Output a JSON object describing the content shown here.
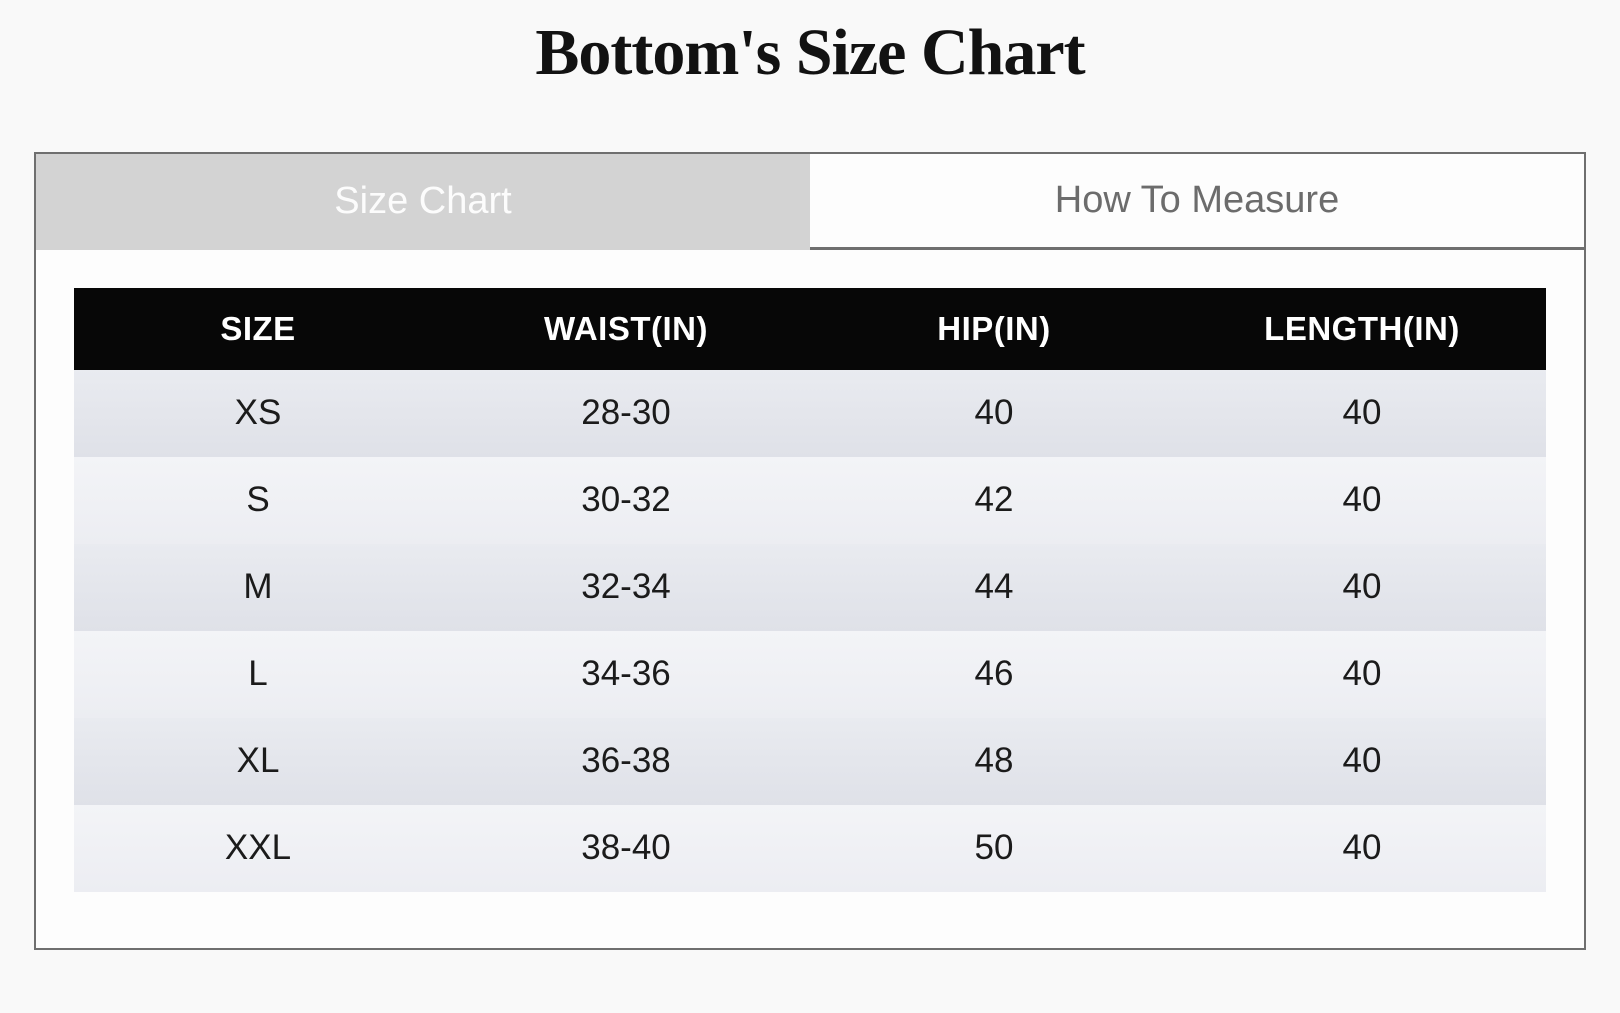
{
  "page": {
    "title": "Bottom's Size Chart"
  },
  "tabs": [
    {
      "label": "Size Chart",
      "active": true
    },
    {
      "label": "How To Measure",
      "active": false
    }
  ],
  "table": {
    "headers": [
      "SIZE",
      "WAIST(IN)",
      "HIP(IN)",
      "LENGTH(IN)"
    ],
    "rows": [
      [
        "XS",
        "28-30",
        "40",
        "40"
      ],
      [
        "S",
        "30-32",
        "42",
        "40"
      ],
      [
        "M",
        "32-34",
        "44",
        "40"
      ],
      [
        "L",
        "34-36",
        "46",
        "40"
      ],
      [
        "XL",
        "36-38",
        "48",
        "40"
      ],
      [
        "XXL",
        "38-40",
        "50",
        "40"
      ]
    ]
  },
  "colors": {
    "page_background": "#f9f9f9",
    "panel_background": "#fdfdfd",
    "panel_border": "#6f6f6f",
    "tab_active_background": "#d3d3d3",
    "tab_active_text": "#fcfcfc",
    "tab_inactive_background": "#fdfdfd",
    "tab_inactive_text": "#6c6c6c",
    "table_header_background": "#070707",
    "table_header_text": "#ffffff",
    "row_odd_background": "#e2e4ea",
    "row_even_background": "#f0f1f4",
    "cell_text": "#1b1b1b",
    "title_text": "#121212"
  }
}
